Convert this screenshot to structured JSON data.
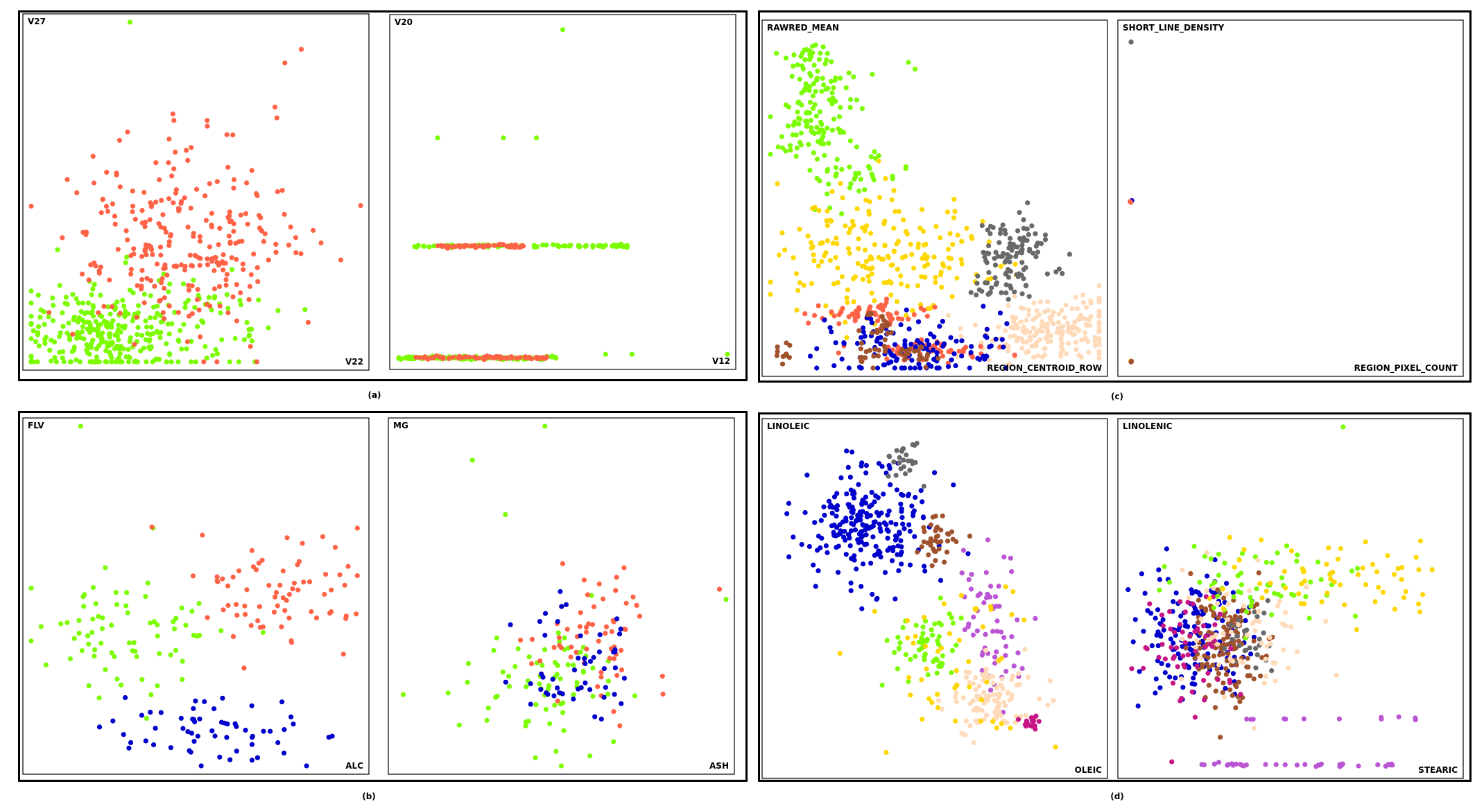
{
  "figure": {
    "captions": [
      "(a)",
      "(b)",
      "(c)",
      "(d)"
    ]
  },
  "colors": {
    "green": "#7CFC00",
    "red": "#FF6347",
    "blue": "#0000CD",
    "gold": "#FFD700",
    "brown": "#A0522D",
    "gray": "#696969",
    "peach": "#FFDAB9",
    "orchid": "#BA55D3",
    "magenta": "#C71585"
  },
  "chart_data": [
    {
      "panel": "a-left",
      "type": "scatter",
      "xlabel": "V22",
      "ylabel": "V27",
      "xlim": [
        0,
        100
      ],
      "ylim": [
        0,
        100
      ],
      "series": [
        {
          "color": "green",
          "clusters": [
            [
              22,
              8,
              12,
              7,
              260
            ],
            [
              45,
              12,
              14,
              8,
              70
            ]
          ],
          "points": [
            [
              30,
              100
            ],
            [
              0,
              11
            ],
            [
              4,
              11
            ],
            [
              8,
              33
            ],
            [
              72,
              10
            ]
          ]
        },
        {
          "color": "red",
          "clusters": [
            [
              45,
              36,
              16,
              14,
              260
            ]
          ],
          "points": [
            [
              82,
              92
            ],
            [
              77,
              88
            ],
            [
              74,
              75
            ],
            [
              43,
              73
            ],
            [
              100,
              46
            ],
            [
              94,
              30
            ],
            [
              88,
              35
            ]
          ]
        }
      ]
    },
    {
      "panel": "a-right",
      "type": "scatter",
      "xlabel": "V12",
      "ylabel": "V20",
      "xlim": [
        0,
        100
      ],
      "ylim": [
        0,
        100
      ],
      "series": [
        {
          "color": "green",
          "bands": [
            [
              0,
              48,
              1,
              140
            ],
            [
              5,
              70,
              34,
              80
            ]
          ],
          "points": [
            [
              50,
              98
            ],
            [
              12,
              66
            ],
            [
              32,
              66
            ],
            [
              42,
              66
            ],
            [
              63,
              2
            ],
            [
              71,
              2
            ],
            [
              100,
              2
            ],
            [
              68,
              34
            ],
            [
              65,
              34
            ]
          ]
        },
        {
          "color": "red",
          "bands": [
            [
              5,
              46,
              1,
              70
            ],
            [
              12,
              38,
              34,
              50
            ]
          ]
        }
      ]
    },
    {
      "panel": "b-left",
      "type": "scatter",
      "xlabel": "ALC",
      "ylabel": "FLV",
      "xlim": [
        0,
        100
      ],
      "ylim": [
        0,
        100
      ],
      "series": [
        {
          "color": "green",
          "clusters": [
            [
              30,
              38,
              14,
              10,
              70
            ]
          ],
          "points": [
            [
              15,
              100
            ],
            [
              3,
              41
            ],
            [
              37,
              70
            ],
            [
              35,
              14
            ]
          ]
        },
        {
          "color": "red",
          "clusters": [
            [
              73,
              52,
              13,
              8,
              70
            ]
          ],
          "points": [
            [
              99,
              70
            ],
            [
              99,
              56
            ]
          ]
        },
        {
          "color": "blue",
          "clusters": [
            [
              60,
              10,
              18,
              5,
              60
            ]
          ]
        }
      ]
    },
    {
      "panel": "b-right",
      "type": "scatter",
      "xlabel": "ASH",
      "ylabel": "MG",
      "xlim": [
        0,
        100
      ],
      "ylim": [
        0,
        100
      ],
      "series": [
        {
          "color": "green",
          "clusters": [
            [
              48,
              22,
              12,
              9,
              70
            ]
          ],
          "points": [
            [
              45,
              100
            ],
            [
              23,
              90
            ],
            [
              33,
              74
            ],
            [
              100,
              49
            ],
            [
              2,
              21
            ],
            [
              19,
              12
            ],
            [
              50,
              0
            ]
          ]
        },
        {
          "color": "red",
          "clusters": [
            [
              60,
              38,
              10,
              9,
              60
            ]
          ],
          "points": [
            [
              98,
              52
            ]
          ]
        },
        {
          "color": "blue",
          "clusters": [
            [
              54,
              30,
              9,
              9,
              50
            ]
          ]
        }
      ]
    },
    {
      "panel": "c-left",
      "type": "scatter",
      "xlabel": "REGION_CENTROID_ROW",
      "ylabel": "RAWRED_MEAN",
      "xlim": [
        0,
        100
      ],
      "ylim": [
        0,
        100
      ],
      "series": [
        {
          "color": "green",
          "clusters": [
            [
              10,
              93,
              4,
              2,
              25
            ],
            [
              15,
              82,
              6,
              4,
              60
            ],
            [
              14,
              70,
              7,
              4,
              60
            ],
            [
              24,
              56,
              10,
              4,
              40
            ]
          ],
          "points": [
            [
              44,
              88
            ],
            [
              42,
              90
            ]
          ]
        },
        {
          "color": "gold",
          "clusters": [
            [
              32,
              34,
              16,
              9,
              200
            ]
          ]
        },
        {
          "color": "gray",
          "clusters": [
            [
              75,
              34,
              6,
              5,
              90
            ],
            [
              70,
              23,
              4,
              3,
              25
            ]
          ]
        },
        {
          "color": "peach",
          "clusters": [
            [
              85,
              11,
              13,
              4,
              190
            ]
          ]
        },
        {
          "color": "red",
          "clusters": [
            [
              31,
              16,
              10,
              1.5,
              60
            ],
            [
              50,
              5,
              10,
              1.5,
              60
            ]
          ]
        },
        {
          "color": "blue",
          "clusters": [
            [
              42,
              6,
              14,
              5,
              130
            ]
          ]
        },
        {
          "color": "brown",
          "clusters": [
            [
              34,
              11,
              3,
              3,
              25
            ],
            [
              5,
              5,
              2,
              2,
              12
            ],
            [
              28,
              4,
              2,
              2,
              10
            ],
            [
              44,
              4,
              3,
              2,
              20
            ]
          ]
        }
      ]
    },
    {
      "panel": "c-right",
      "type": "scatter",
      "xlabel": "REGION_PIXEL_COUNT",
      "ylabel": "SHORT_LINE_DENSITY",
      "xlim": [
        0,
        100
      ],
      "ylim": [
        0,
        100
      ],
      "series": [
        {
          "color": "gray",
          "points": [
            [
              1.5,
              96
            ],
            [
              1.5,
              96
            ]
          ]
        },
        {
          "color": "blue",
          "points": [
            [
              1.5,
              49
            ],
            [
              1.7,
              49.3
            ]
          ]
        },
        {
          "color": "red",
          "points": [
            [
              1.2,
              49
            ],
            [
              1.4,
              48.8
            ]
          ]
        },
        {
          "color": "gold",
          "points": [
            [
              1.5,
              2
            ],
            [
              1.4,
              2
            ]
          ]
        },
        {
          "color": "brown",
          "points": [
            [
              1.6,
              2
            ],
            [
              1.5,
              1.8
            ]
          ]
        }
      ]
    },
    {
      "panel": "d-left",
      "type": "scatter",
      "xlabel": "OLEIC",
      "ylabel": "LINOLEIC",
      "xlim": [
        0,
        100
      ],
      "ylim": [
        0,
        100
      ],
      "series": [
        {
          "color": "blue",
          "clusters": [
            [
              30,
              72,
              10,
              9,
              230
            ]
          ]
        },
        {
          "color": "gray",
          "clusters": [
            [
              40,
              90,
              3,
              3,
              25
            ]
          ]
        },
        {
          "color": "brown",
          "clusters": [
            [
              51,
              67,
              3,
              3,
              40
            ]
          ]
        },
        {
          "color": "orchid",
          "clusters": [
            [
              67,
              42,
              5,
              12,
              60
            ]
          ]
        },
        {
          "color": "green",
          "clusters": [
            [
              48,
              36,
              5,
              5,
              60
            ]
          ]
        },
        {
          "color": "peach",
          "clusters": [
            [
              68,
              22,
              7,
              5,
              100
            ]
          ]
        },
        {
          "color": "magenta",
          "clusters": [
            [
              80,
              13,
              1.5,
              1.5,
              20
            ]
          ]
        },
        {
          "color": "gold",
          "clusters": [
            [
              55,
              30,
              12,
              12,
              50
            ]
          ]
        }
      ]
    },
    {
      "panel": "d-right",
      "type": "scatter",
      "xlabel": "STEARIC",
      "ylabel": "LINOLENIC",
      "xlim": [
        0,
        100
      ],
      "ylim": [
        0,
        100
      ],
      "series": [
        {
          "color": "blue",
          "clusters": [
            [
              20,
              40,
              8,
              9,
              160
            ]
          ]
        },
        {
          "color": "brown",
          "clusters": [
            [
              30,
              36,
              5,
              8,
              130
            ]
          ]
        },
        {
          "color": "magenta",
          "clusters": [
            [
              19,
              36,
              7,
              9,
              60
            ]
          ]
        },
        {
          "color": "gray",
          "clusters": [
            [
              38,
              38,
              4,
              6,
              30
            ]
          ]
        },
        {
          "color": "green",
          "clusters": [
            [
              40,
              55,
              16,
              6,
              60
            ]
          ],
          "points": [
            [
              66,
              100
            ]
          ]
        },
        {
          "color": "gold",
          "clusters": [
            [
              60,
              55,
              18,
              6,
              60
            ]
          ]
        },
        {
          "color": "peach",
          "clusters": [
            [
              36,
              42,
              12,
              10,
              60
            ]
          ]
        },
        {
          "color": "orchid",
          "bands": [
            [
              32,
              90,
              15,
              12
            ],
            [
              23,
              83,
              1.5,
              35
            ]
          ]
        }
      ]
    }
  ]
}
